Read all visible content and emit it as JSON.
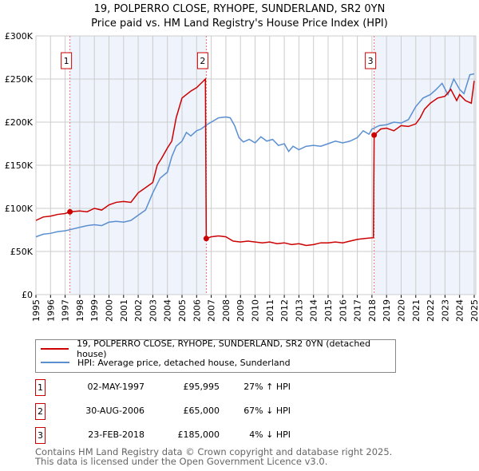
{
  "title": "19, POLPERRO CLOSE, RYHOPE, SUNDERLAND, SR2 0YN",
  "subtitle": "Price paid vs. HM Land Registry's House Price Index (HPI)",
  "colors": {
    "red": "#cc0000",
    "blue": "#5b8fd0",
    "shade": "#eef3fc",
    "grid": "#cccccc"
  },
  "chart_data": {
    "type": "line",
    "xlim": [
      1995,
      2025
    ],
    "ylim": [
      0,
      300000
    ],
    "yticks": [
      {
        "v": 0,
        "label": "£0"
      },
      {
        "v": 50000,
        "label": "£50K"
      },
      {
        "v": 100000,
        "label": "£100K"
      },
      {
        "v": 150000,
        "label": "£150K"
      },
      {
        "v": 200000,
        "label": "£200K"
      },
      {
        "v": 250000,
        "label": "£250K"
      },
      {
        "v": 300000,
        "label": "£300K"
      }
    ],
    "xticks": [
      "1995",
      "1996",
      "1997",
      "1998",
      "1999",
      "2000",
      "2001",
      "2002",
      "2003",
      "2004",
      "2005",
      "2006",
      "2007",
      "2008",
      "2009",
      "2010",
      "2011",
      "2012",
      "2013",
      "2014",
      "2015",
      "2016",
      "2017",
      "2018",
      "2019",
      "2020",
      "2021",
      "2022",
      "2023",
      "2024",
      "2025"
    ],
    "series": [
      {
        "name": "19, POLPERRO CLOSE, RYHOPE, SUNDERLAND, SR2 0YN (detached house)",
        "color": "#cc0000",
        "x": [
          1995,
          1995.5,
          1996,
          1996.5,
          1997,
          1997.33,
          1998,
          1998.5,
          1999,
          1999.5,
          2000,
          2000.5,
          2001,
          2001.5,
          2002,
          2002.5,
          2003,
          2003.3,
          2003.6,
          2004,
          2004.3,
          2004.6,
          2005,
          2005.3,
          2005.6,
          2006,
          2006.3,
          2006.6,
          2006.66,
          2007,
          2007.5,
          2008,
          2008.5,
          2009,
          2009.5,
          2010,
          2010.5,
          2011,
          2011.5,
          2012,
          2012.5,
          2013,
          2013.5,
          2014,
          2014.5,
          2015,
          2015.5,
          2016,
          2016.5,
          2017,
          2017.5,
          2018.1,
          2018.15,
          2018.6,
          2019,
          2019.5,
          2020,
          2020.5,
          2021,
          2021.3,
          2021.6,
          2022,
          2022.5,
          2023,
          2023.4,
          2023.8,
          2024,
          2024.4,
          2024.8,
          2025
        ],
        "y": [
          86000,
          90000,
          91000,
          93000,
          94000,
          95995,
          97000,
          96000,
          100000,
          98000,
          104000,
          107000,
          108000,
          107000,
          118000,
          124000,
          130000,
          150000,
          158000,
          170000,
          178000,
          205000,
          228000,
          232000,
          236000,
          240000,
          245000,
          250000,
          65000,
          67000,
          68000,
          67000,
          62000,
          61000,
          62000,
          61000,
          60000,
          61000,
          59000,
          60000,
          58000,
          59000,
          57000,
          58000,
          60000,
          60000,
          61000,
          60000,
          62000,
          64000,
          65000,
          66000,
          185000,
          192000,
          193000,
          190000,
          196000,
          195000,
          198000,
          205000,
          215000,
          222000,
          228000,
          230000,
          238000,
          225000,
          232000,
          225000,
          222000,
          248000
        ]
      },
      {
        "name": "HPI: Average price, detached house, Sunderland",
        "color": "#5b8fd0",
        "x": [
          1995,
          1995.5,
          1996,
          1996.5,
          1997,
          1997.5,
          1998,
          1998.5,
          1999,
          1999.5,
          2000,
          2000.5,
          2001,
          2001.5,
          2002,
          2002.5,
          2003,
          2003.5,
          2004,
          2004.3,
          2004.6,
          2005,
          2005.3,
          2005.6,
          2006,
          2006.3,
          2006.7,
          2007,
          2007.5,
          2008,
          2008.3,
          2008.6,
          2008.9,
          2009.2,
          2009.6,
          2010,
          2010.4,
          2010.8,
          2011.2,
          2011.6,
          2012,
          2012.3,
          2012.6,
          2013,
          2013.5,
          2014,
          2014.5,
          2015,
          2015.5,
          2016,
          2016.5,
          2017,
          2017.4,
          2017.8,
          2018,
          2018.5,
          2019,
          2019.5,
          2020,
          2020.5,
          2021,
          2021.5,
          2022,
          2022.4,
          2022.8,
          2023.2,
          2023.6,
          2024,
          2024.3,
          2024.7,
          2025
        ],
        "y": [
          67000,
          70000,
          71000,
          73000,
          74000,
          76000,
          78000,
          80000,
          81000,
          80000,
          84000,
          85000,
          84000,
          86000,
          92000,
          98000,
          118000,
          135000,
          142000,
          160000,
          172000,
          178000,
          188000,
          184000,
          190000,
          192000,
          197000,
          200000,
          205000,
          206000,
          205000,
          196000,
          182000,
          177000,
          180000,
          176000,
          183000,
          178000,
          180000,
          173000,
          175000,
          166000,
          172000,
          168000,
          172000,
          173000,
          172000,
          175000,
          178000,
          176000,
          178000,
          182000,
          190000,
          186000,
          192000,
          196000,
          197000,
          200000,
          199000,
          203000,
          218000,
          228000,
          232000,
          238000,
          245000,
          232000,
          250000,
          238000,
          233000,
          255000,
          256000
        ]
      }
    ],
    "sales": [
      {
        "label": "1",
        "x": 1997.33,
        "y": 95995,
        "date": "02-MAY-1997",
        "price": "£95,995",
        "hpi": "27% ↑ HPI"
      },
      {
        "label": "2",
        "x": 2006.66,
        "y": 65000,
        "date": "30-AUG-2006",
        "price": "£65,000",
        "hpi": "67% ↓ HPI"
      },
      {
        "label": "3",
        "x": 2018.15,
        "y": 185000,
        "date": "23-FEB-2018",
        "price": "£185,000",
        "hpi": "4% ↓ HPI"
      }
    ]
  },
  "footer": [
    "Contains HM Land Registry data © Crown copyright and database right 2025.",
    "This data is licensed under the Open Government Licence v3.0."
  ]
}
